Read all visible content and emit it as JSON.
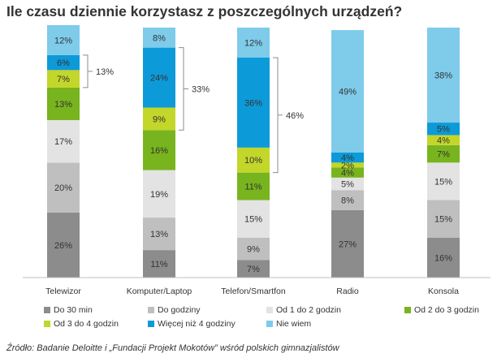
{
  "chart_data": {
    "type": "stacked_bar",
    "title": "Ile czasu dziennie korzystasz z poszczególnych urządzeń?",
    "categories": [
      "Telewizor",
      "Komputer/Laptop",
      "Telefon/Smartfon",
      "Radio",
      "Konsola"
    ],
    "series": [
      {
        "name": "Do 30 min",
        "color": "#8c8c8c",
        "text_color": "#ffffff",
        "values": [
          26,
          11,
          7,
          27,
          16
        ]
      },
      {
        "name": "Do godziny",
        "color": "#bfbfbf",
        "text_color": "#333333",
        "values": [
          20,
          13,
          9,
          8,
          15
        ]
      },
      {
        "name": "Od 1 do 2 godzin",
        "color": "#e3e3e3",
        "text_color": "#333333",
        "values": [
          17,
          19,
          15,
          5,
          15
        ]
      },
      {
        "name": "Od 2 do 3 godzin",
        "color": "#78b41e",
        "text_color": "#ffffff",
        "values": [
          13,
          16,
          11,
          4,
          7
        ]
      },
      {
        "name": "Od 3 do 4 godzin",
        "color": "#c3d62a",
        "text_color": "#333333",
        "values": [
          7,
          9,
          10,
          2,
          4
        ]
      },
      {
        "name": "Więcej niż 4 godziny",
        "color": "#0d9ad8",
        "text_color": "#333333",
        "values": [
          6,
          24,
          36,
          4,
          5
        ]
      },
      {
        "name": "Nie wiem",
        "color": "#7ecbea",
        "text_color": "#333333",
        "values": [
          12,
          8,
          12,
          49,
          38
        ]
      }
    ],
    "value_suffix": "%",
    "brackets": [
      {
        "category": "Telewizor",
        "label": "13%",
        "from_series": 4,
        "to_series": 5
      },
      {
        "category": "Komputer/Laptop",
        "label": "33%",
        "from_series": 4,
        "to_series": 5
      },
      {
        "category": "Telefon/Smartfon",
        "label": "46%",
        "from_series": 4,
        "to_series": 5
      }
    ],
    "ylim": [
      0,
      100
    ],
    "grid": false,
    "legend_position": "bottom"
  },
  "source": "Źródło: Badanie Deloitte i „Fundacji Projekt Mokotów” wśród polskich gimnazjalistów"
}
